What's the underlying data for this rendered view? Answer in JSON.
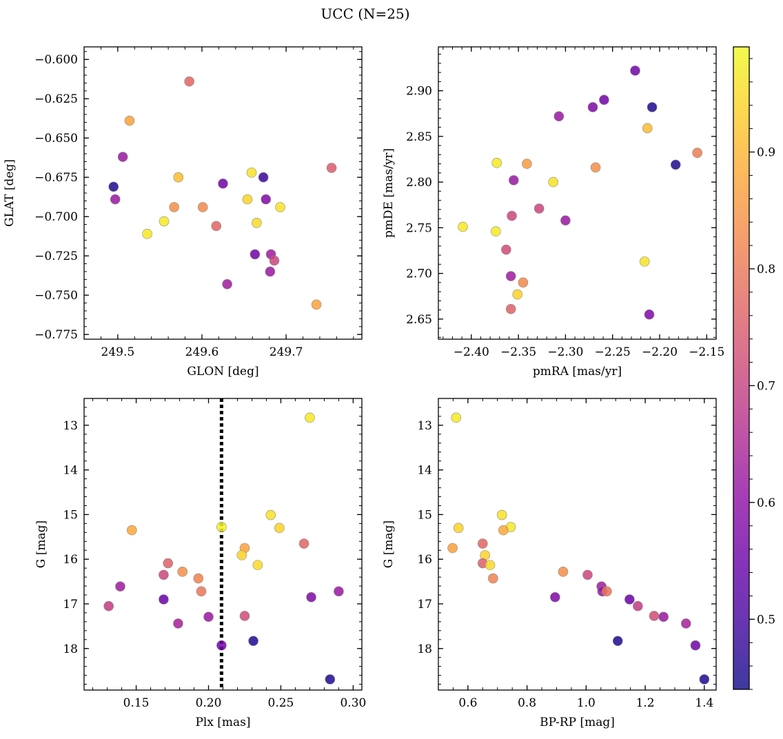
{
  "suptitle": "UCC (N=25)",
  "colorbar": {
    "colormap": "plasma",
    "range": [
      0.44,
      0.99
    ],
    "ticks": [
      0.5,
      0.6,
      0.7,
      0.8,
      0.9
    ],
    "tick_labels": [
      "0.5",
      "0.6",
      "0.7",
      "0.8",
      "0.9"
    ]
  },
  "chart_data": [
    {
      "type": "scatter",
      "xlabel": "GLON [deg]",
      "ylabel": "GLAT [deg]",
      "xlim": [
        249.46,
        249.79
      ],
      "ylim": [
        -0.778,
        -0.592
      ],
      "xticks": [
        249.5,
        249.6,
        249.7
      ],
      "xtick_labels": [
        "249.5",
        "249.6",
        "249.7"
      ],
      "yticks": [
        -0.6,
        -0.625,
        -0.65,
        -0.675,
        -0.7,
        -0.725,
        -0.75,
        -0.775
      ],
      "ytick_labels": [
        "−0.600",
        "−0.625",
        "−0.650",
        "−0.675",
        "−0.700",
        "−0.725",
        "−0.750",
        "−0.775"
      ],
      "points": [
        {
          "x": 249.585,
          "y": -0.614,
          "c": 0.77
        },
        {
          "x": 249.514,
          "y": -0.639,
          "c": 0.87
        },
        {
          "x": 249.506,
          "y": -0.662,
          "c": 0.62
        },
        {
          "x": 249.754,
          "y": -0.669,
          "c": 0.75
        },
        {
          "x": 249.659,
          "y": -0.672,
          "c": 0.96
        },
        {
          "x": 249.572,
          "y": -0.675,
          "c": 0.91
        },
        {
          "x": 249.673,
          "y": -0.675,
          "c": 0.49
        },
        {
          "x": 249.495,
          "y": -0.681,
          "c": 0.46
        },
        {
          "x": 249.625,
          "y": -0.679,
          "c": 0.56
        },
        {
          "x": 249.497,
          "y": -0.689,
          "c": 0.62
        },
        {
          "x": 249.654,
          "y": -0.689,
          "c": 0.94
        },
        {
          "x": 249.676,
          "y": -0.689,
          "c": 0.58
        },
        {
          "x": 249.567,
          "y": -0.694,
          "c": 0.84
        },
        {
          "x": 249.601,
          "y": -0.694,
          "c": 0.83
        },
        {
          "x": 249.693,
          "y": -0.694,
          "c": 0.96
        },
        {
          "x": 249.555,
          "y": -0.703,
          "c": 0.97
        },
        {
          "x": 249.665,
          "y": -0.704,
          "c": 0.95
        },
        {
          "x": 249.617,
          "y": -0.706,
          "c": 0.77
        },
        {
          "x": 249.535,
          "y": -0.711,
          "c": 0.97
        },
        {
          "x": 249.663,
          "y": -0.724,
          "c": 0.56
        },
        {
          "x": 249.682,
          "y": -0.724,
          "c": 0.63
        },
        {
          "x": 249.686,
          "y": -0.728,
          "c": 0.71
        },
        {
          "x": 249.681,
          "y": -0.735,
          "c": 0.62
        },
        {
          "x": 249.63,
          "y": -0.743,
          "c": 0.63
        },
        {
          "x": 249.736,
          "y": -0.756,
          "c": 0.87
        }
      ]
    },
    {
      "type": "scatter",
      "xlabel": "pmRA [mas/yr]",
      "ylabel": "pmDE [mas/yr]",
      "xlim": [
        -2.435,
        -2.14
      ],
      "ylim": [
        2.628,
        2.948
      ],
      "xticks": [
        -2.4,
        -2.35,
        -2.3,
        -2.25,
        -2.2,
        -2.15
      ],
      "xtick_labels": [
        "−2.40",
        "−2.35",
        "−2.30",
        "−2.25",
        "−2.20",
        "−2.15"
      ],
      "yticks": [
        2.65,
        2.7,
        2.75,
        2.8,
        2.85,
        2.9
      ],
      "ytick_labels": [
        "2.65",
        "2.70",
        "2.75",
        "2.80",
        "2.85",
        "2.90"
      ],
      "points": [
        {
          "x": -2.226,
          "y": 2.922,
          "c": 0.56
        },
        {
          "x": -2.259,
          "y": 2.89,
          "c": 0.56
        },
        {
          "x": -2.271,
          "y": 2.882,
          "c": 0.58
        },
        {
          "x": -2.208,
          "y": 2.882,
          "c": 0.46
        },
        {
          "x": -2.307,
          "y": 2.872,
          "c": 0.62
        },
        {
          "x": -2.213,
          "y": 2.859,
          "c": 0.91
        },
        {
          "x": -2.16,
          "y": 2.832,
          "c": 0.81
        },
        {
          "x": -2.373,
          "y": 2.821,
          "c": 0.97
        },
        {
          "x": -2.341,
          "y": 2.82,
          "c": 0.86
        },
        {
          "x": -2.183,
          "y": 2.819,
          "c": 0.46
        },
        {
          "x": -2.268,
          "y": 2.816,
          "c": 0.84
        },
        {
          "x": -2.355,
          "y": 2.802,
          "c": 0.62
        },
        {
          "x": -2.313,
          "y": 2.8,
          "c": 0.96
        },
        {
          "x": -2.328,
          "y": 2.771,
          "c": 0.71
        },
        {
          "x": -2.357,
          "y": 2.763,
          "c": 0.71
        },
        {
          "x": -2.3,
          "y": 2.758,
          "c": 0.62
        },
        {
          "x": -2.409,
          "y": 2.751,
          "c": 0.97
        },
        {
          "x": -2.374,
          "y": 2.746,
          "c": 0.97
        },
        {
          "x": -2.363,
          "y": 2.726,
          "c": 0.72
        },
        {
          "x": -2.216,
          "y": 2.713,
          "c": 0.96
        },
        {
          "x": -2.358,
          "y": 2.697,
          "c": 0.63
        },
        {
          "x": -2.345,
          "y": 2.69,
          "c": 0.83
        },
        {
          "x": -2.351,
          "y": 2.677,
          "c": 0.94
        },
        {
          "x": -2.358,
          "y": 2.661,
          "c": 0.76
        },
        {
          "x": -2.211,
          "y": 2.655,
          "c": 0.58
        }
      ]
    },
    {
      "type": "scatter",
      "xlabel": "Plx [mas]",
      "ylabel": "G [mag]",
      "xlim": [
        0.114,
        0.306
      ],
      "ylim": [
        18.93,
        12.4
      ],
      "y_inverted": true,
      "xticks": [
        0.15,
        0.2,
        0.25,
        0.3
      ],
      "xtick_labels": [
        "0.15",
        "0.20",
        "0.25",
        "0.30"
      ],
      "yticks": [
        13,
        14,
        15,
        16,
        17,
        18
      ],
      "ytick_labels": [
        "13",
        "14",
        "15",
        "16",
        "17",
        "18"
      ],
      "vline": {
        "x": 0.209,
        "style": "dotted",
        "color": "#000000"
      },
      "points": [
        {
          "x": 0.27,
          "y": 12.83,
          "c": 0.97
        },
        {
          "x": 0.243,
          "y": 15.01,
          "c": 0.96
        },
        {
          "x": 0.209,
          "y": 15.28,
          "c": 0.98
        },
        {
          "x": 0.249,
          "y": 15.3,
          "c": 0.94
        },
        {
          "x": 0.147,
          "y": 15.35,
          "c": 0.88
        },
        {
          "x": 0.266,
          "y": 15.65,
          "c": 0.77
        },
        {
          "x": 0.225,
          "y": 15.75,
          "c": 0.87
        },
        {
          "x": 0.223,
          "y": 15.91,
          "c": 0.94
        },
        {
          "x": 0.172,
          "y": 16.09,
          "c": 0.76
        },
        {
          "x": 0.234,
          "y": 16.13,
          "c": 0.95
        },
        {
          "x": 0.182,
          "y": 16.28,
          "c": 0.84
        },
        {
          "x": 0.169,
          "y": 16.35,
          "c": 0.71
        },
        {
          "x": 0.193,
          "y": 16.43,
          "c": 0.82
        },
        {
          "x": 0.139,
          "y": 16.61,
          "c": 0.63
        },
        {
          "x": 0.195,
          "y": 16.72,
          "c": 0.8
        },
        {
          "x": 0.29,
          "y": 16.72,
          "c": 0.62
        },
        {
          "x": 0.271,
          "y": 16.85,
          "c": 0.58
        },
        {
          "x": 0.169,
          "y": 16.9,
          "c": 0.55
        },
        {
          "x": 0.131,
          "y": 17.05,
          "c": 0.69
        },
        {
          "x": 0.225,
          "y": 17.27,
          "c": 0.72
        },
        {
          "x": 0.2,
          "y": 17.29,
          "c": 0.62
        },
        {
          "x": 0.179,
          "y": 17.44,
          "c": 0.64
        },
        {
          "x": 0.231,
          "y": 17.83,
          "c": 0.46
        },
        {
          "x": 0.209,
          "y": 17.93,
          "c": 0.56
        },
        {
          "x": 0.284,
          "y": 18.69,
          "c": 0.46
        }
      ]
    },
    {
      "type": "scatter",
      "xlabel": "BP-RP [mag]",
      "ylabel": "G [mag]",
      "xlim": [
        0.5,
        1.44
      ],
      "ylim": [
        18.93,
        12.4
      ],
      "y_inverted": true,
      "xticks": [
        0.6,
        0.8,
        1.0,
        1.2,
        1.4
      ],
      "xtick_labels": [
        "0.6",
        "0.8",
        "1.0",
        "1.2",
        "1.4"
      ],
      "yticks": [
        13,
        14,
        15,
        16,
        17,
        18
      ],
      "ytick_labels": [
        "13",
        "14",
        "15",
        "16",
        "17",
        "18"
      ],
      "points": [
        {
          "x": 0.56,
          "y": 12.83,
          "c": 0.97
        },
        {
          "x": 0.715,
          "y": 15.01,
          "c": 0.96
        },
        {
          "x": 0.745,
          "y": 15.28,
          "c": 0.97
        },
        {
          "x": 0.568,
          "y": 15.3,
          "c": 0.94
        },
        {
          "x": 0.72,
          "y": 15.35,
          "c": 0.88
        },
        {
          "x": 0.548,
          "y": 15.75,
          "c": 0.87
        },
        {
          "x": 0.65,
          "y": 15.65,
          "c": 0.77
        },
        {
          "x": 0.658,
          "y": 15.91,
          "c": 0.94
        },
        {
          "x": 0.65,
          "y": 16.09,
          "c": 0.76
        },
        {
          "x": 0.675,
          "y": 16.13,
          "c": 0.95
        },
        {
          "x": 0.922,
          "y": 16.28,
          "c": 0.84
        },
        {
          "x": 1.005,
          "y": 16.35,
          "c": 0.71
        },
        {
          "x": 0.685,
          "y": 16.43,
          "c": 0.82
        },
        {
          "x": 1.052,
          "y": 16.61,
          "c": 0.63
        },
        {
          "x": 1.055,
          "y": 16.72,
          "c": 0.62
        },
        {
          "x": 1.07,
          "y": 16.72,
          "c": 0.8
        },
        {
          "x": 0.895,
          "y": 16.85,
          "c": 0.58
        },
        {
          "x": 1.147,
          "y": 16.9,
          "c": 0.55
        },
        {
          "x": 1.175,
          "y": 17.05,
          "c": 0.69
        },
        {
          "x": 1.23,
          "y": 17.27,
          "c": 0.72
        },
        {
          "x": 1.262,
          "y": 17.29,
          "c": 0.62
        },
        {
          "x": 1.338,
          "y": 17.44,
          "c": 0.64
        },
        {
          "x": 1.107,
          "y": 17.83,
          "c": 0.46
        },
        {
          "x": 1.37,
          "y": 17.93,
          "c": 0.56
        },
        {
          "x": 1.4,
          "y": 18.69,
          "c": 0.46
        }
      ]
    }
  ]
}
